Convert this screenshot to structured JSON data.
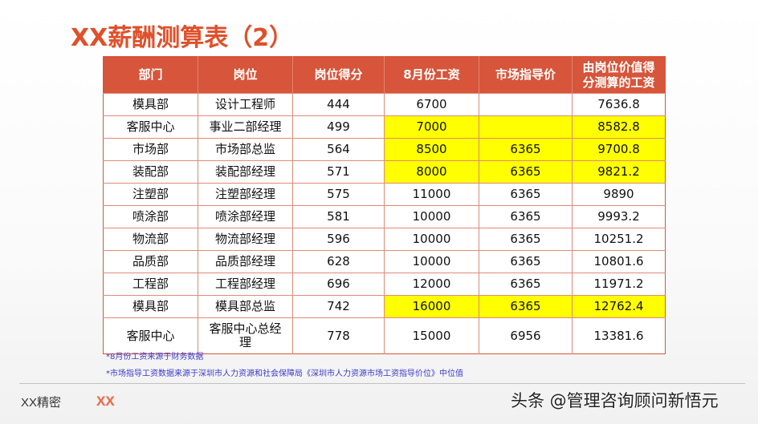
{
  "title": "XX薪酬测算表（2）",
  "table": {
    "headers": [
      "部门",
      "岗位",
      "岗位得分",
      "8月份工资",
      "市场指导价",
      "由岗位价值得\n分测算的工资"
    ],
    "rows": [
      {
        "dept": "模具部",
        "post": "设计工程师",
        "score": "444",
        "aug": "6700",
        "market": "",
        "calc": "7636.8",
        "yellow": [
          false,
          false,
          false,
          false,
          false,
          false
        ]
      },
      {
        "dept": "客服中心",
        "post": "事业二部经理",
        "score": "499",
        "aug": "7000",
        "market": "",
        "calc": "8582.8",
        "yellow": [
          false,
          false,
          false,
          true,
          true,
          true
        ]
      },
      {
        "dept": "市场部",
        "post": "市场部总监",
        "score": "564",
        "aug": "8500",
        "market": "6365",
        "calc": "9700.8",
        "yellow": [
          false,
          false,
          false,
          true,
          true,
          true
        ]
      },
      {
        "dept": "装配部",
        "post": "装配部经理",
        "score": "571",
        "aug": "8000",
        "market": "6365",
        "calc": "9821.2",
        "yellow": [
          false,
          false,
          false,
          true,
          true,
          true
        ]
      },
      {
        "dept": "注塑部",
        "post": "注塑部经理",
        "score": "575",
        "aug": "11000",
        "market": "6365",
        "calc": "9890",
        "yellow": [
          false,
          false,
          false,
          false,
          false,
          false
        ]
      },
      {
        "dept": "喷涂部",
        "post": "喷涂部经理",
        "score": "581",
        "aug": "10000",
        "market": "6365",
        "calc": "9993.2",
        "yellow": [
          false,
          false,
          false,
          false,
          false,
          false
        ]
      },
      {
        "dept": "物流部",
        "post": "物流部经理",
        "score": "596",
        "aug": "10000",
        "market": "6365",
        "calc": "10251.2",
        "yellow": [
          false,
          false,
          false,
          false,
          false,
          false
        ]
      },
      {
        "dept": "品质部",
        "post": "品质部经理",
        "score": "628",
        "aug": "10000",
        "market": "6365",
        "calc": "10801.6",
        "yellow": [
          false,
          false,
          false,
          false,
          false,
          false
        ]
      },
      {
        "dept": "工程部",
        "post": "工程部经理",
        "score": "696",
        "aug": "12000",
        "market": "6365",
        "calc": "11971.2",
        "yellow": [
          false,
          false,
          false,
          false,
          false,
          false
        ]
      },
      {
        "dept": "模具部",
        "post": "模具部总监",
        "score": "742",
        "aug": "16000",
        "market": "6365",
        "calc": "12762.4",
        "yellow": [
          false,
          false,
          false,
          true,
          true,
          true
        ]
      },
      {
        "dept": "客服中心",
        "post": "客服中心总经\n理",
        "score": "778",
        "aug": "15000",
        "market": "6956",
        "calc": "13381.6",
        "yellow": [
          false,
          false,
          false,
          false,
          false,
          false
        ]
      }
    ],
    "highlight_color": "#ffff00",
    "header_color": "#d7553a"
  },
  "notes": [
    "*8月份工资来源于财务数据",
    "*市场指导工资数据来源于深圳市人力资源和社会保障局《深圳市人力资源市场工资指导价位》中位值"
  ],
  "footer": {
    "confidential": "XX精密",
    "logo": "XX"
  },
  "watermark": "头条 @管理咨询顾问新悟元"
}
